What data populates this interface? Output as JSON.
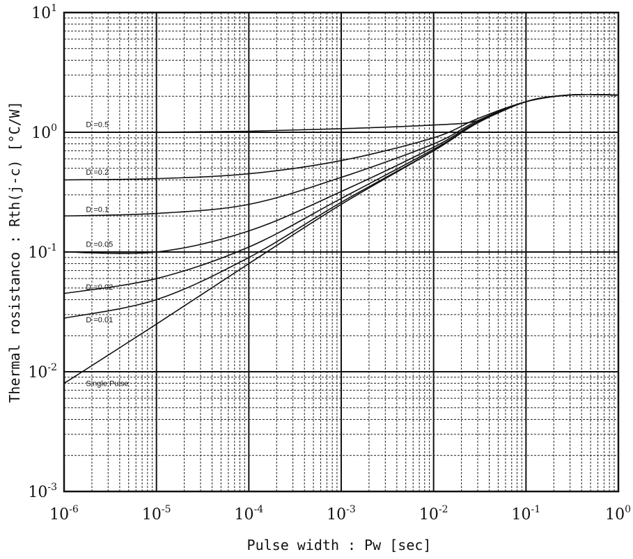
{
  "chart_data": {
    "type": "line",
    "title": "",
    "xlabel": "Pulse width  :  Pw  [sec]",
    "ylabel": "Thermal rosistanco  :  Rth(j-c)  [°C/W]",
    "xscale": "log",
    "yscale": "log",
    "xlim": [
      1e-06,
      1
    ],
    "ylim": [
      0.001,
      10
    ],
    "grid": true,
    "x_ticks": [
      {
        "base": "10",
        "exp": "-6"
      },
      {
        "base": "10",
        "exp": "-5"
      },
      {
        "base": "10",
        "exp": "-4"
      },
      {
        "base": "10",
        "exp": "-3"
      },
      {
        "base": "10",
        "exp": "-2"
      },
      {
        "base": "10",
        "exp": "-1"
      },
      {
        "base": "10",
        "exp": "0"
      }
    ],
    "y_ticks": [
      {
        "base": "10",
        "exp": "-3"
      },
      {
        "base": "10",
        "exp": "-2"
      },
      {
        "base": "10",
        "exp": "-1"
      },
      {
        "base": "10",
        "exp": "0"
      },
      {
        "base": "10",
        "exp": "1"
      }
    ],
    "x": [
      1e-06,
      1e-05,
      0.0001,
      0.001,
      0.01,
      0.03,
      0.1,
      0.3,
      1
    ],
    "series": [
      {
        "name": "D =0.5",
        "label_at": [
          1.5e-06,
          1.05
        ],
        "values": [
          1.0,
          1.0,
          1.02,
          1.07,
          1.15,
          1.25,
          1.8,
          2.05,
          2.05
        ]
      },
      {
        "name": "D =0.2",
        "label_at": [
          1.5e-06,
          0.42
        ],
        "values": [
          0.4,
          0.41,
          0.45,
          0.58,
          0.9,
          1.3,
          1.8,
          2.05,
          2.05
        ]
      },
      {
        "name": "D =0.1",
        "label_at": [
          1.5e-06,
          0.205
        ],
        "values": [
          0.2,
          0.21,
          0.25,
          0.42,
          0.8,
          1.25,
          1.8,
          2.05,
          2.05
        ]
      },
      {
        "name": "D =0.05",
        "label_at": [
          1.5e-06,
          0.105
        ],
        "values": [
          0.1,
          0.1,
          0.15,
          0.32,
          0.75,
          1.22,
          1.8,
          2.05,
          2.05
        ]
      },
      {
        "name": "D =0.02",
        "label_at": [
          1.5e-06,
          0.046
        ],
        "values": [
          0.045,
          0.06,
          0.11,
          0.28,
          0.72,
          1.2,
          1.8,
          2.05,
          2.05
        ]
      },
      {
        "name": "D =0.01",
        "label_at": [
          1.5e-06,
          0.0245
        ],
        "values": [
          0.028,
          0.04,
          0.09,
          0.26,
          0.7,
          1.2,
          1.8,
          2.05,
          2.05
        ]
      },
      {
        "name": "Single Pulse",
        "label_at": [
          1.5e-06,
          0.0072
        ],
        "values": [
          0.008,
          0.025,
          0.08,
          0.25,
          0.7,
          1.2,
          1.8,
          2.05,
          2.05
        ]
      }
    ]
  }
}
